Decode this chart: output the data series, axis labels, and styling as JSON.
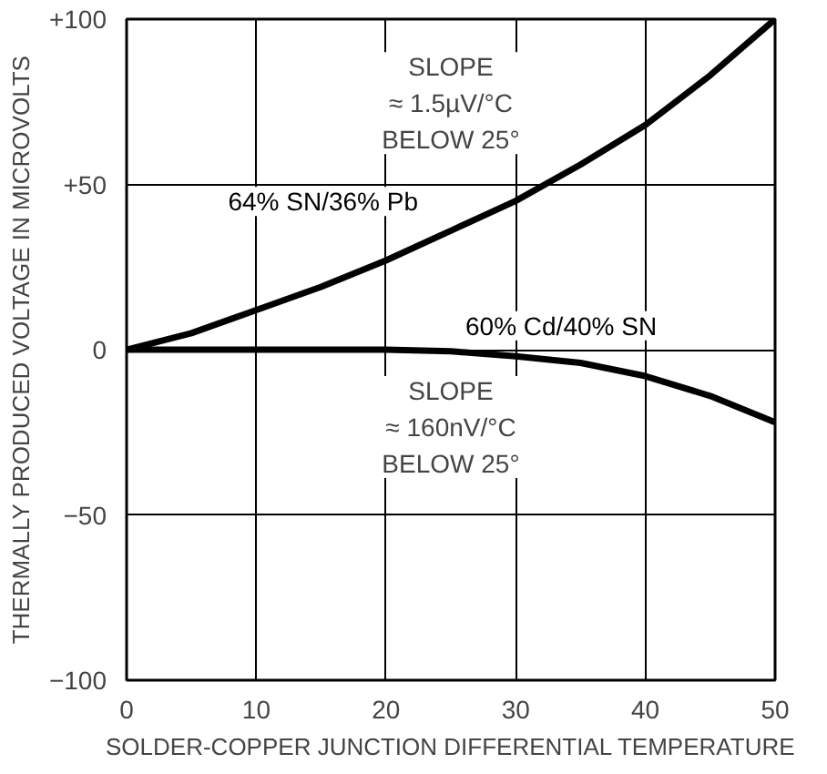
{
  "chart_data": {
    "type": "line",
    "xlabel": "SOLDER-COPPER JUNCTION DIFFERENTIAL TEMPERATURE",
    "ylabel": "THERMALLY PRODUCED VOLTAGE IN MICROVOLTS",
    "annotations": [
      "SLOPE\n≈ 1.5µV/°C\nBELOW 25°",
      "SLOPE\n≈ 160nV/°C\nBELOW 25°"
    ],
    "series": [
      {
        "name": "64% SN/36% Pb",
        "color": "#000000",
        "x": [
          0,
          5,
          10,
          15,
          20,
          25,
          30,
          35,
          40,
          45,
          50
        ],
        "values": [
          0,
          5,
          12,
          19,
          27,
          36,
          45,
          56,
          68,
          83,
          100
        ]
      },
      {
        "name": "60% Cd/40% SN",
        "color": "#000000",
        "x": [
          0,
          10,
          20,
          25,
          30,
          35,
          40,
          45,
          50
        ],
        "values": [
          0,
          0,
          0,
          -0.5,
          -2,
          -4,
          -8,
          -14,
          -22
        ]
      }
    ],
    "xlim": [
      0,
      50
    ],
    "xticks": [
      0,
      10,
      20,
      30,
      40,
      50
    ],
    "ylim": [
      -100,
      100
    ],
    "yticks": [
      {
        "value": -100,
        "label": "−100"
      },
      {
        "value": -50,
        "label": "−50"
      },
      0,
      {
        "value": 50,
        "label": "+50"
      },
      {
        "value": 100,
        "label": "+100"
      }
    ],
    "grid": true,
    "marker": "none",
    "line_style": "solid"
  }
}
